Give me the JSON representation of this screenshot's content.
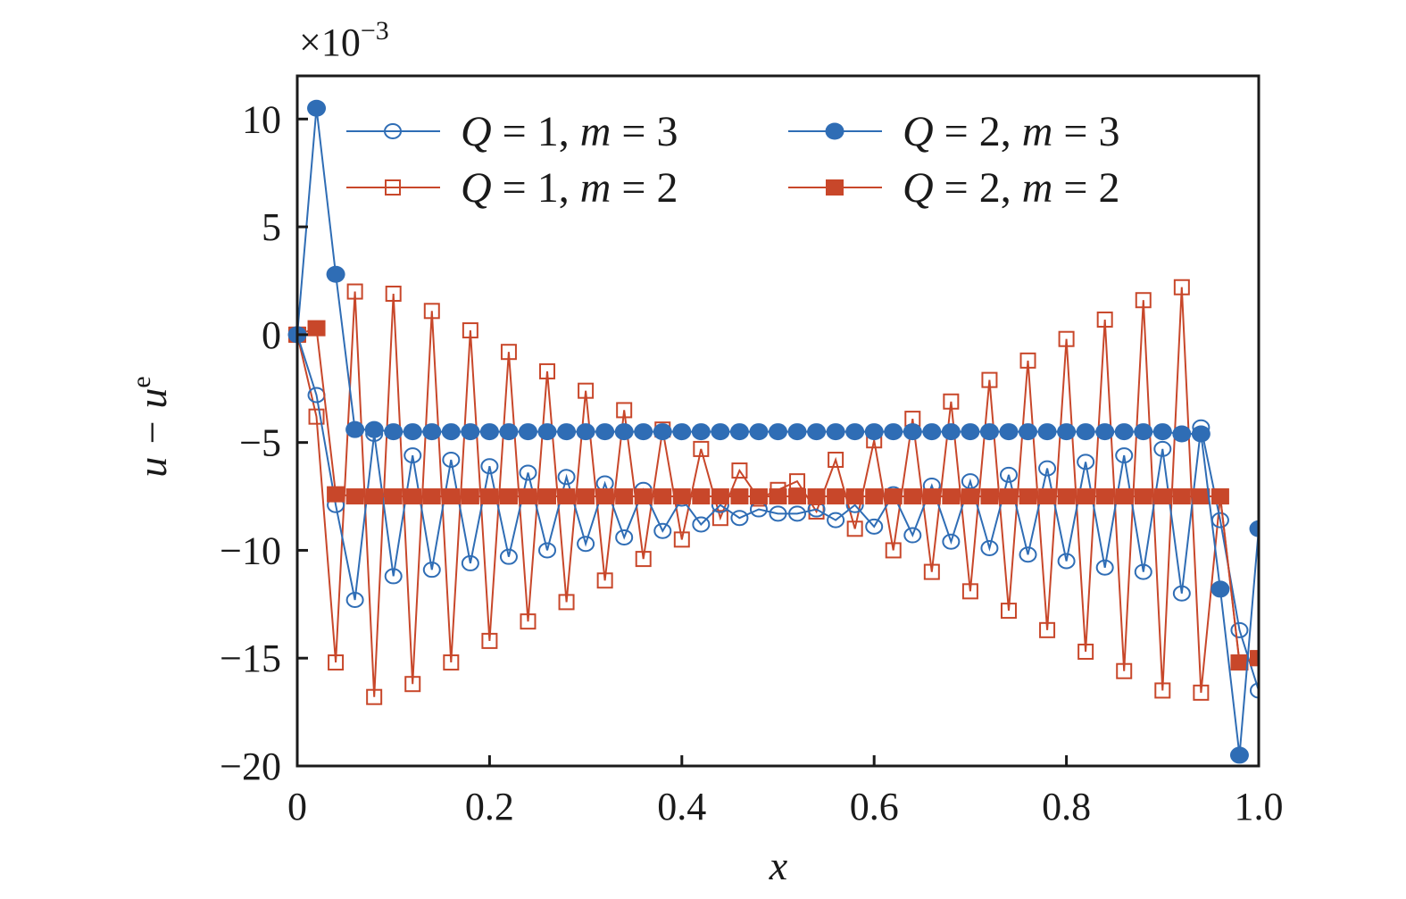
{
  "chart_data": {
    "type": "line",
    "title": "",
    "xlabel": "x",
    "ylabel_main": "u − u",
    "ylabel_sup": "e",
    "y_multiplier_prefix": "×10",
    "y_multiplier_exp": "−3",
    "xlim": [
      0,
      1.0
    ],
    "ylim": [
      -20,
      12
    ],
    "xticks": [
      0,
      0.2,
      0.4,
      0.6,
      0.8,
      1.0
    ],
    "xtick_labels": [
      "0",
      "0.2",
      "0.4",
      "0.6",
      "0.8",
      "1.0"
    ],
    "yticks": [
      10,
      5,
      0,
      -5,
      -10,
      -15,
      -20
    ],
    "ytick_labels": [
      "10",
      "5",
      "0",
      "−5",
      "−10",
      "−15",
      "−20"
    ],
    "grid": false,
    "legend_placement": "top",
    "x": [
      0,
      0.02,
      0.04,
      0.06,
      0.08,
      0.1,
      0.12,
      0.14,
      0.16,
      0.18,
      0.2,
      0.22,
      0.24,
      0.26,
      0.28,
      0.3,
      0.32,
      0.34,
      0.36,
      0.38,
      0.4,
      0.42,
      0.44,
      0.46,
      0.48,
      0.5,
      0.52,
      0.54,
      0.56,
      0.58,
      0.6,
      0.62,
      0.64,
      0.66,
      0.68,
      0.7,
      0.72,
      0.74,
      0.76,
      0.78,
      0.8,
      0.82,
      0.84,
      0.86,
      0.88,
      0.9,
      0.92,
      0.94,
      0.96,
      0.98,
      1.0
    ],
    "series": [
      {
        "name": "Q = 1, m = 3",
        "color": "#2f6db5",
        "marker": "open-circle",
        "values": [
          0,
          -2.8,
          -7.9,
          -12.3,
          -4.6,
          -11.2,
          -5.6,
          -10.9,
          -5.8,
          -10.6,
          -6.1,
          -10.3,
          -6.4,
          -10.0,
          -6.6,
          -9.7,
          -6.9,
          -9.4,
          -7.2,
          -9.1,
          -7.6,
          -8.8,
          -7.9,
          -8.5,
          -8.1,
          -8.3,
          -8.3,
          -8.1,
          -8.6,
          -7.9,
          -8.9,
          -7.4,
          -9.3,
          -7.0,
          -9.6,
          -6.8,
          -9.9,
          -6.5,
          -10.2,
          -6.2,
          -10.5,
          -5.9,
          -10.8,
          -5.6,
          -11.0,
          -5.3,
          -12.0,
          -4.3,
          -8.6,
          -13.7,
          -16.5
        ]
      },
      {
        "name": "Q = 2, m = 3",
        "color": "#2f6db5",
        "marker": "filled-circle",
        "values": [
          0,
          10.5,
          2.8,
          -4.4,
          -4.4,
          -4.5,
          -4.5,
          -4.5,
          -4.5,
          -4.5,
          -4.5,
          -4.5,
          -4.5,
          -4.5,
          -4.5,
          -4.5,
          -4.5,
          -4.5,
          -4.5,
          -4.5,
          -4.5,
          -4.5,
          -4.5,
          -4.5,
          -4.5,
          -4.5,
          -4.5,
          -4.5,
          -4.5,
          -4.5,
          -4.5,
          -4.5,
          -4.5,
          -4.5,
          -4.5,
          -4.5,
          -4.5,
          -4.5,
          -4.5,
          -4.5,
          -4.5,
          -4.5,
          -4.5,
          -4.5,
          -4.5,
          -4.5,
          -4.6,
          -4.6,
          -11.8,
          -19.5,
          -9.0
        ]
      },
      {
        "name": "Q = 1, m = 2",
        "color": "#c8472a",
        "marker": "open-square",
        "values": [
          0,
          -3.8,
          -15.2,
          2.0,
          -16.8,
          1.9,
          -16.2,
          1.1,
          -15.2,
          0.2,
          -14.2,
          -0.8,
          -13.3,
          -1.7,
          -12.4,
          -2.6,
          -11.4,
          -3.5,
          -10.4,
          -4.4,
          -9.5,
          -5.3,
          -8.5,
          -6.3,
          -7.6,
          -7.2,
          -6.8,
          -8.2,
          -5.8,
          -9.0,
          -4.9,
          -10.0,
          -3.9,
          -11.0,
          -3.1,
          -11.9,
          -2.1,
          -12.8,
          -1.2,
          -13.7,
          -0.2,
          -14.7,
          0.7,
          -15.6,
          1.6,
          -16.5,
          2.2,
          -16.6,
          -7.5,
          -15.2,
          -15.0
        ]
      },
      {
        "name": "Q = 2, m = 2",
        "color": "#c8472a",
        "marker": "filled-square",
        "values": [
          0,
          0.3,
          -7.4,
          -7.5,
          -7.5,
          -7.5,
          -7.5,
          -7.5,
          -7.5,
          -7.5,
          -7.5,
          -7.5,
          -7.5,
          -7.5,
          -7.5,
          -7.5,
          -7.5,
          -7.5,
          -7.5,
          -7.5,
          -7.5,
          -7.5,
          -7.5,
          -7.5,
          -7.5,
          -7.5,
          -7.5,
          -7.5,
          -7.5,
          -7.5,
          -7.5,
          -7.5,
          -7.5,
          -7.5,
          -7.5,
          -7.5,
          -7.5,
          -7.5,
          -7.5,
          -7.5,
          -7.5,
          -7.5,
          -7.5,
          -7.5,
          -7.5,
          -7.5,
          -7.5,
          -7.5,
          -7.5,
          -15.2,
          -15.0
        ]
      }
    ],
    "legend_order": [
      0,
      1,
      2,
      3
    ]
  }
}
